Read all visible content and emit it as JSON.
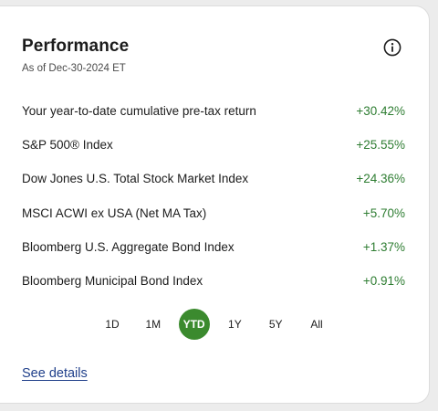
{
  "card": {
    "title": "Performance",
    "as_of": "As of Dec-30-2024 ET",
    "info_icon": "info-icon"
  },
  "rows": [
    {
      "label": "Your year-to-date cumulative pre-tax return",
      "value": "+30.42%"
    },
    {
      "label": "S&P 500® Index",
      "value": "+25.55%"
    },
    {
      "label": "Dow Jones U.S. Total Stock Market Index",
      "value": "+24.36%"
    },
    {
      "label": "MSCI ACWI ex USA (Net MA Tax)",
      "value": "+5.70%"
    },
    {
      "label": "Bloomberg U.S. Aggregate Bond Index",
      "value": "+1.37%"
    },
    {
      "label": "Bloomberg Municipal Bond Index",
      "value": "+0.91%"
    }
  ],
  "periods": [
    "1D",
    "1M",
    "YTD",
    "1Y",
    "5Y",
    "All"
  ],
  "selected_period": "YTD",
  "see_details": "See details",
  "colors": {
    "positive": "#2e7d32",
    "active_pill": "#3b8a2e",
    "link": "#1f3f8a"
  }
}
